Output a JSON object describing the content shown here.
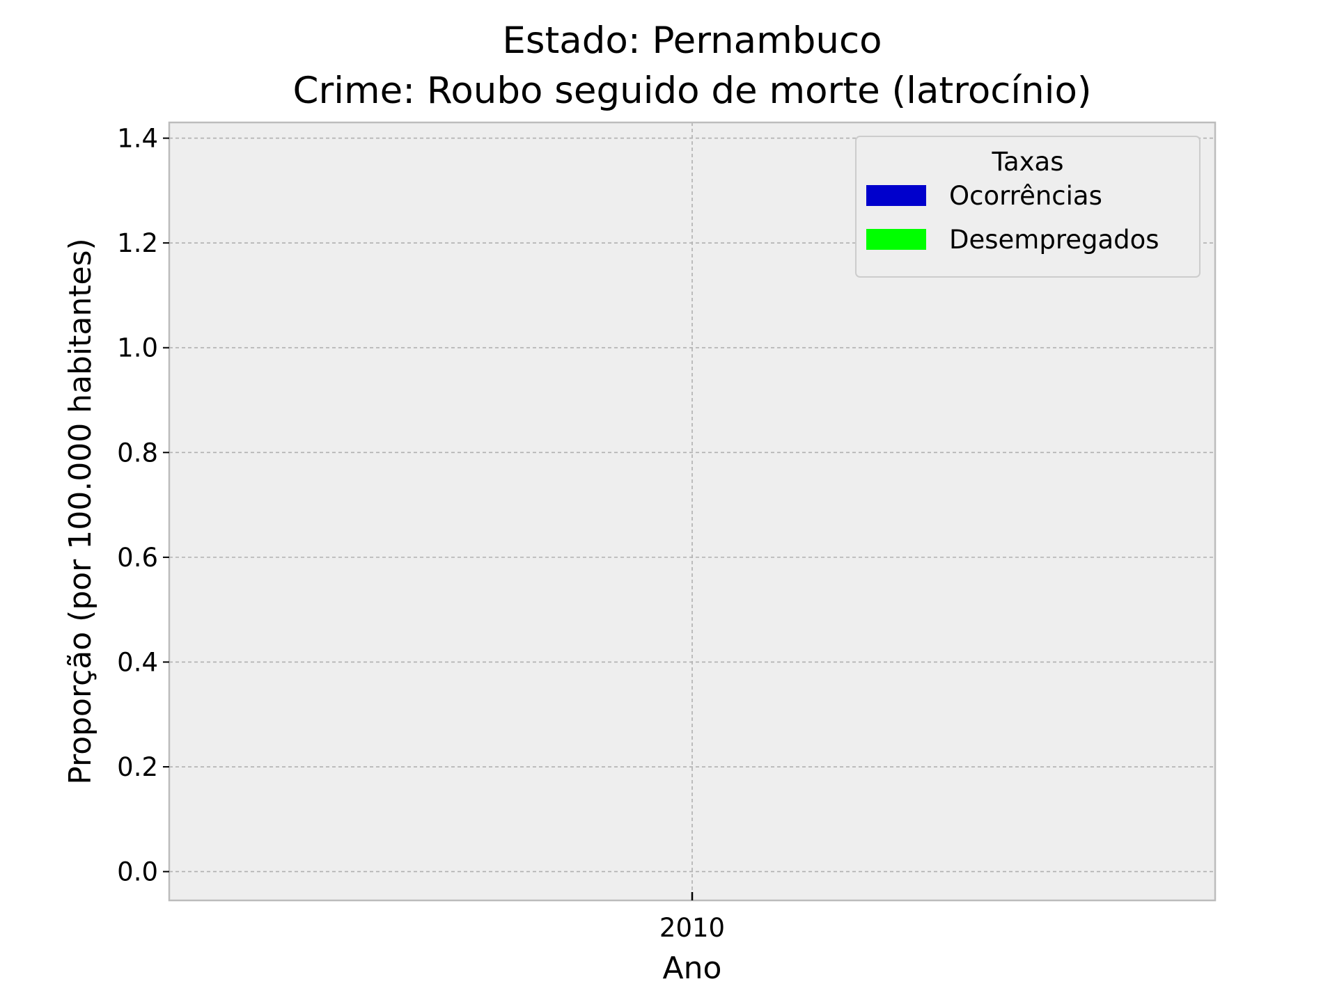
{
  "chart_data": {
    "type": "bar",
    "title_lines": [
      "Estado: Pernambuco",
      "Crime: Roubo seguido de morte (latrocínio)"
    ],
    "xlabel": "Ano",
    "ylabel": "Proporção (por 100.000 habitantes)",
    "categories": [
      "2010"
    ],
    "ylim": [
      -0.055,
      1.43
    ],
    "yticks": [
      "0.0",
      "0.2",
      "0.4",
      "0.6",
      "0.8",
      "1.0",
      "1.2",
      "1.4"
    ],
    "ytick_values": [
      0.0,
      0.2,
      0.4,
      0.6,
      0.8,
      1.0,
      1.2,
      1.4
    ],
    "grid": true,
    "legend": {
      "title": "Taxas",
      "placement": "top-right",
      "entries": [
        {
          "name": "Ocorrências",
          "color": "#0000cc"
        },
        {
          "name": "Desempregados",
          "color": "#00ff00"
        }
      ]
    },
    "series": [
      {
        "name": "Ocorrências",
        "values": [
          0
        ]
      },
      {
        "name": "Desempregados",
        "values": [
          0
        ]
      }
    ],
    "colors": {
      "plot_background": "#eeeeee",
      "frame": "#bcbcbc",
      "grid": "#b0b0b0"
    }
  }
}
